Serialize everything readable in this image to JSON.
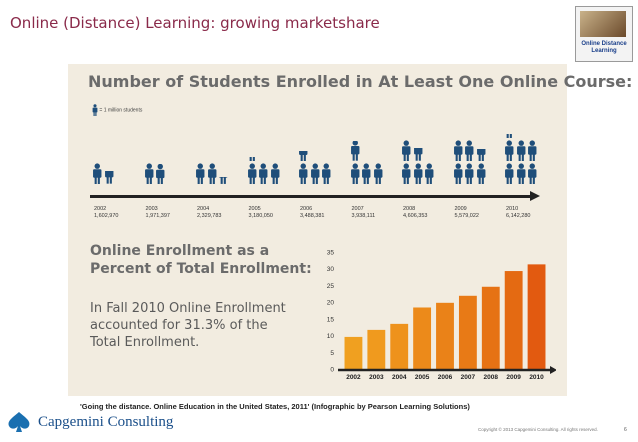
{
  "slide": {
    "title": "Online (Distance) Learning: growing marketshare",
    "logo_text": "Online Distance Learning",
    "citation": "'Going the distance. Online Education in the United States, 2011' (Infographic by Pearson Learning Solutions)",
    "brand": "Capgemini Consulting",
    "copyright": "Copyright © 2013 Capgemini Consulting. All rights reserved.",
    "page_number": "6"
  },
  "infographic": {
    "title": "Number of Students Enrolled in At Least One Online Course:",
    "legend": "= 1 million students",
    "icon_color": "#1f4e7a",
    "years": [
      {
        "year": "2002",
        "count": "1,602,970",
        "value": 1602970
      },
      {
        "year": "2003",
        "count": "1,971,397",
        "value": 1971397
      },
      {
        "year": "2004",
        "count": "2,329,783",
        "value": 2329783
      },
      {
        "year": "2005",
        "count": "3,180,050",
        "value": 3180050
      },
      {
        "year": "2006",
        "count": "3,488,381",
        "value": 3488381
      },
      {
        "year": "2007",
        "count": "3,938,111",
        "value": 3938111
      },
      {
        "year": "2008",
        "count": "4,606,353",
        "value": 4606353
      },
      {
        "year": "2009",
        "count": "5,579,022",
        "value": 5579022
      },
      {
        "year": "2010",
        "count": "6,142,280",
        "value": 6142280
      }
    ],
    "sub_heading": [
      "Online Enrollment as a",
      "Percent of Total Enrollment:"
    ],
    "fact": [
      "In Fall 2010 Online Enrollment",
      "accounted for 31.3% of the",
      "Total Enrollment."
    ]
  },
  "chart_data": {
    "type": "bar",
    "title": "Online Enrollment as a Percent of Total Enrollment",
    "categories": [
      "2002",
      "2003",
      "2004",
      "2005",
      "2006",
      "2007",
      "2008",
      "2009",
      "2010"
    ],
    "values": [
      9.6,
      11.7,
      13.5,
      18.4,
      19.8,
      21.9,
      24.6,
      29.3,
      31.3
    ],
    "yticks": [
      "0",
      "5",
      "10",
      "15",
      "20",
      "25",
      "30",
      "35"
    ],
    "ylim": [
      0,
      35
    ],
    "colors": [
      "#f0a020",
      "#f09a1e",
      "#ee921c",
      "#ec8a1a",
      "#ea8218",
      "#e87a16",
      "#e67214",
      "#e46a12",
      "#e25a10"
    ]
  }
}
